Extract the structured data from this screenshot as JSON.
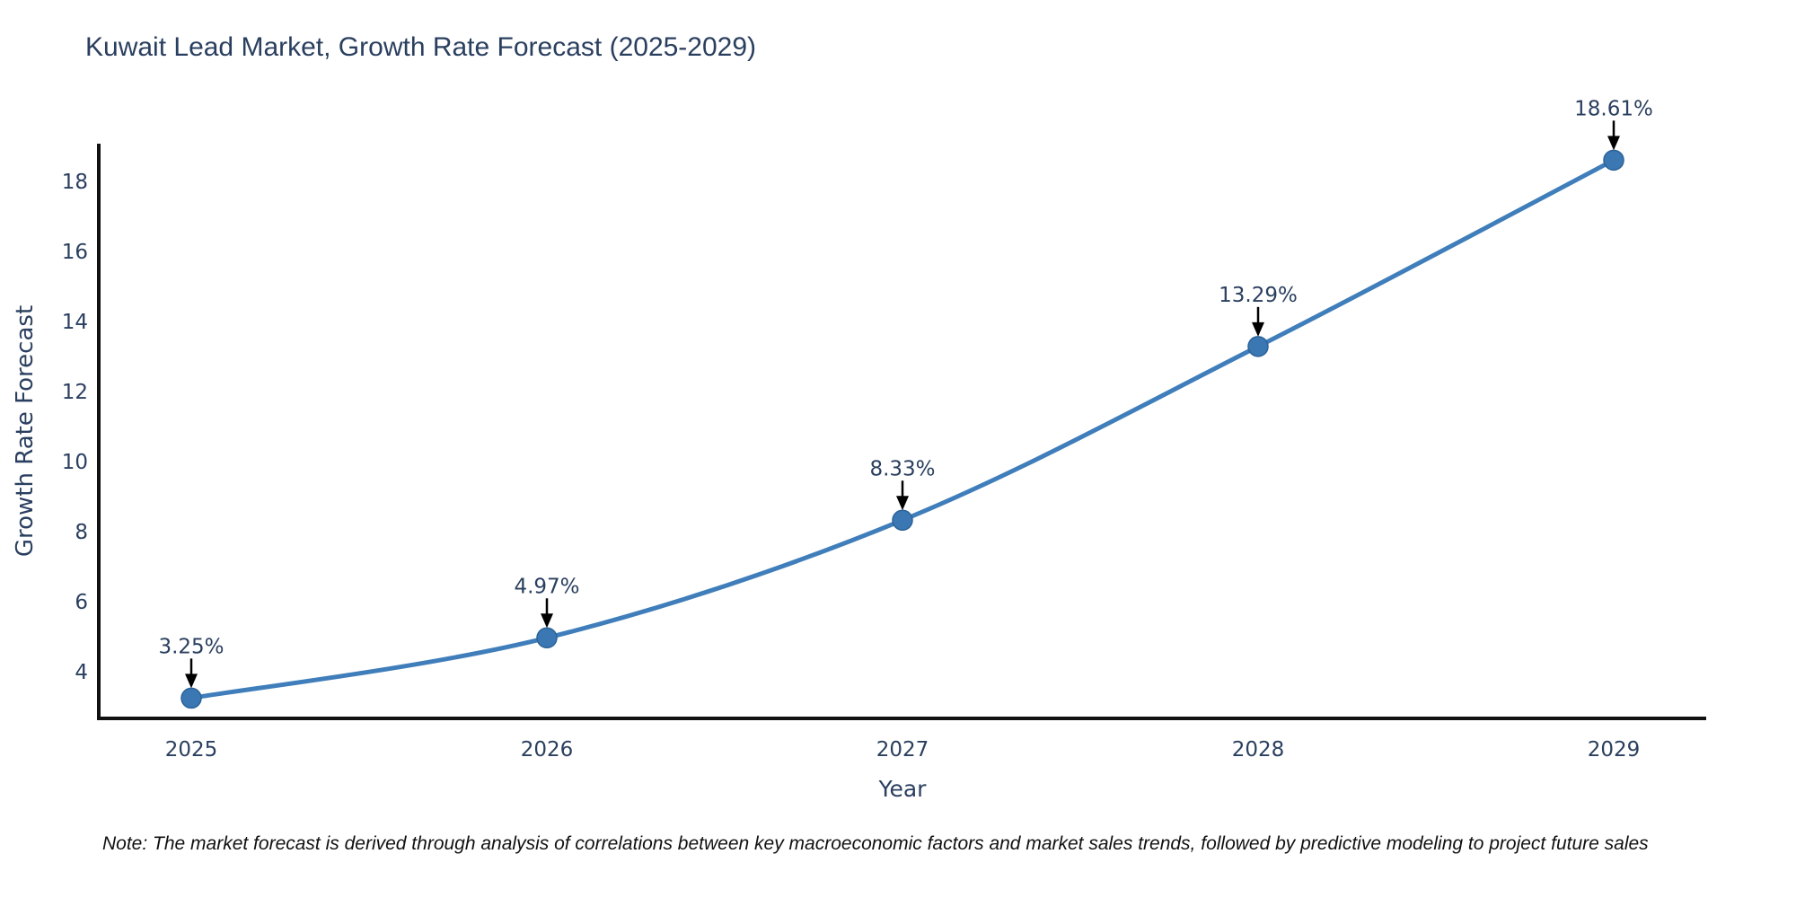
{
  "note": "Note: The market forecast is derived through analysis of correlations between key macroeconomic factors and market sales trends, followed by predictive modeling to project future sales",
  "chart_data": {
    "type": "line",
    "title": "Kuwait Lead Market, Growth Rate Forecast (2025-2029)",
    "xlabel": "Year",
    "ylabel": "Growth Rate Forecast",
    "categories": [
      "2025",
      "2026",
      "2027",
      "2028",
      "2029"
    ],
    "series": [
      {
        "name": "Growth Rate Forecast",
        "values": [
          3.25,
          4.97,
          8.33,
          13.29,
          18.61
        ],
        "point_labels": [
          "3.25%",
          "4.97%",
          "8.33%",
          "13.29%",
          "18.61%"
        ]
      }
    ],
    "yticks": [
      4,
      6,
      8,
      10,
      12,
      14,
      16,
      18
    ],
    "ylim": [
      2.67,
      19.08
    ],
    "grid": false,
    "legend_position": "none",
    "line_shape": "spline",
    "annotation_arrows": true,
    "colors": {
      "line": "#3f7eba",
      "marker_fill": "#3a77b3",
      "marker_stroke": "#2c6399",
      "axis": "#111111",
      "text": "#2a3f5f",
      "annotation_text": "#2a3f5f",
      "arrow": "#000000",
      "note_text": "#111111",
      "background": "#ffffff"
    }
  }
}
